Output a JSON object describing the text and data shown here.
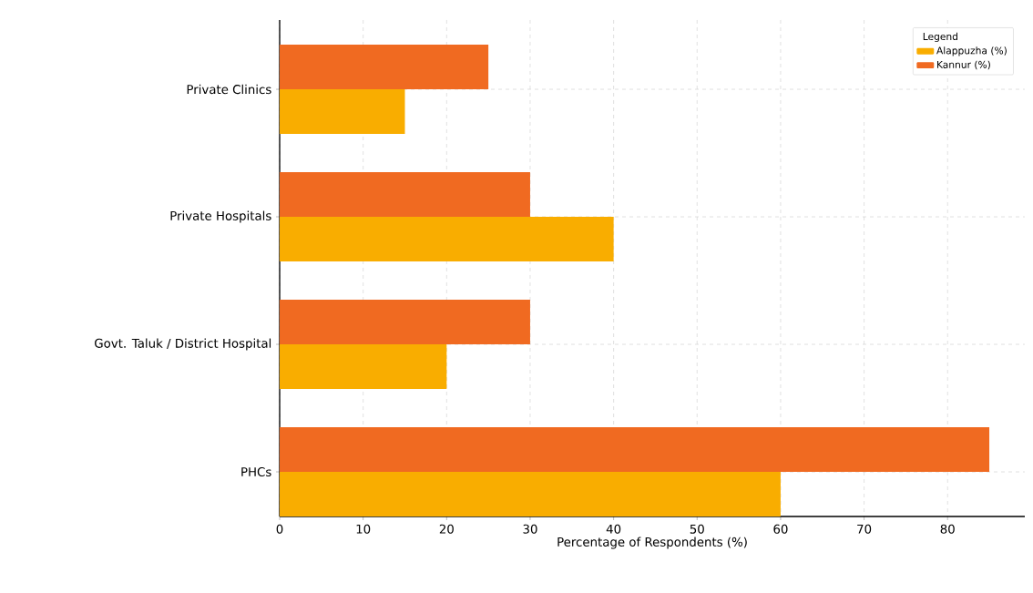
{
  "chart_data": {
    "type": "bar",
    "orientation": "horizontal",
    "categories": [
      "Private Clinics",
      "Private Hospitals",
      "Govt. Taluk / District Hospital",
      "PHCs"
    ],
    "series": [
      {
        "name": "Alappuzha (%)",
        "color": "#f9ad00",
        "values": [
          15,
          40,
          20,
          60
        ]
      },
      {
        "name": "Kannur (%)",
        "color": "#f06a21",
        "values": [
          25,
          30,
          30,
          85
        ]
      }
    ],
    "xlabel": "Percentage of Respondents (%)",
    "legend_title": "Legend",
    "xlim": [
      0,
      89.25
    ],
    "xticks": [
      0,
      10,
      20,
      30,
      40,
      50,
      60,
      70,
      80
    ],
    "grid": true,
    "legend": "top right"
  }
}
